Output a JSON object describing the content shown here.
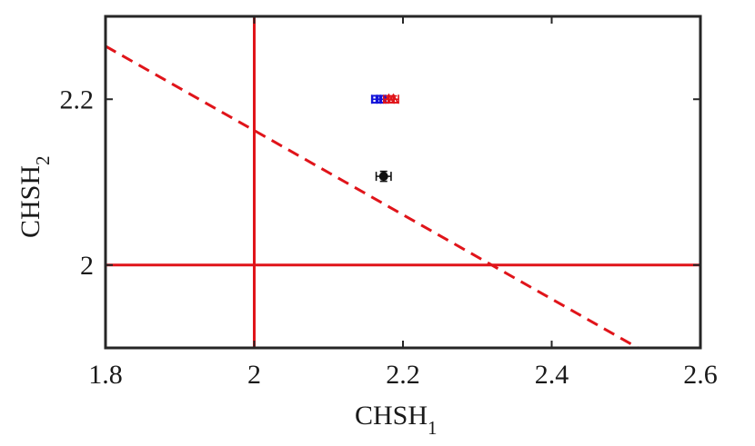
{
  "chart_data": {
    "type": "scatter",
    "title": "",
    "xlabel": {
      "main": "CHSH",
      "sub": "1"
    },
    "ylabel": {
      "main": "CHSH",
      "sub": "2"
    },
    "xlim": [
      1.8,
      2.6
    ],
    "ylim": [
      1.9,
      2.3
    ],
    "xticks": [
      "1.8",
      "2",
      "2.2",
      "2.4",
      "2.6"
    ],
    "yticks": [
      "2",
      "2.2"
    ],
    "grid": false,
    "reference_lines": [
      {
        "kind": "vertical",
        "x": 2,
        "color": "#e0141a",
        "style": "solid"
      },
      {
        "kind": "horizontal",
        "y": 2,
        "color": "#e0141a",
        "style": "solid"
      },
      {
        "kind": "segment",
        "points": [
          [
            1.8,
            2.264
          ],
          [
            2.516,
            1.9
          ]
        ],
        "color": "#e0141a",
        "style": "dashed"
      }
    ],
    "series": [
      {
        "color": "#1414d9",
        "marker": "square",
        "points": [
          {
            "x": 2.164,
            "y": 2.2,
            "xerr": 0.006,
            "yerr": 0.004
          },
          {
            "x": 2.171,
            "y": 2.2,
            "xerr": 0.006,
            "yerr": 0.004
          }
        ]
      },
      {
        "color": "#e0141a",
        "marker": "triangle",
        "points": [
          {
            "x": 2.181,
            "y": 2.2,
            "xerr": 0.007,
            "yerr": 0.004
          },
          {
            "x": 2.187,
            "y": 2.2,
            "xerr": 0.007,
            "yerr": 0.004
          }
        ]
      },
      {
        "color": "#111111",
        "marker": "circle",
        "points": [
          {
            "x": 2.174,
            "y": 2.107,
            "xerr": 0.01,
            "yerr": 0.006
          }
        ]
      }
    ]
  }
}
